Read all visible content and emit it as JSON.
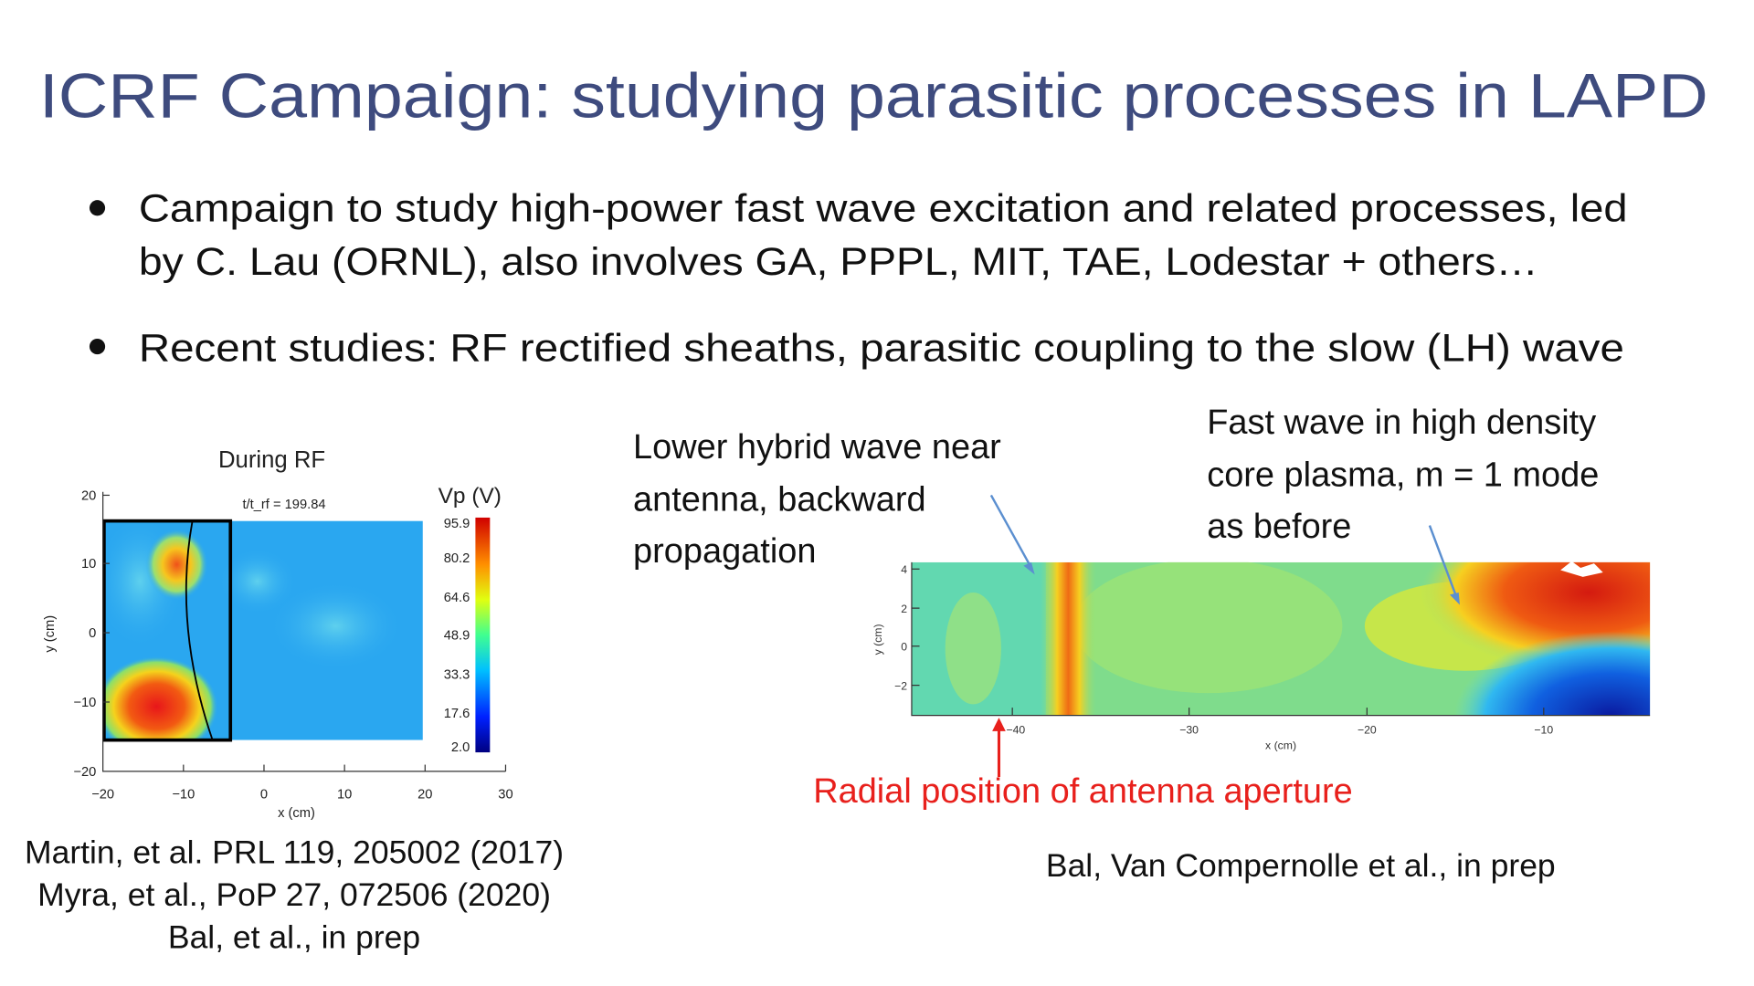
{
  "header": {
    "title": "ICRF Campaign: studying parasitic processes in LAPD"
  },
  "bullets": [
    {
      "lines": [
        "Campaign to study high-power fast wave excitation and related processes, led",
        "by C. Lau (ORNL), also involves GA, PPPL, MIT, TAE, Lodestar + others…"
      ]
    },
    {
      "lines": [
        "Recent studies:  RF rectified sheaths, parasitic coupling to the slow (LH) wave"
      ]
    }
  ],
  "left_figure": {
    "title": "During RF",
    "subtitle": "t/t_rf = 199.84",
    "colorbar_label": "Vp (V)",
    "colorbar_ticks": [
      "95.9",
      "80.2",
      "64.6",
      "48.9",
      "33.3",
      "17.6",
      "2.0"
    ],
    "x_label": "x (cm)",
    "y_label": "y (cm)",
    "xticks": [
      "−20",
      "−10",
      "0",
      "10",
      "20",
      "30"
    ],
    "yticks": [
      "20",
      "10",
      "0",
      "−10",
      "−20"
    ],
    "caption": [
      "Martin, et al. PRL 119, 205002 (2017)",
      "Myra, et al., PoP 27, 072506 (2020)",
      "Bal, et al., in prep"
    ]
  },
  "right_figure": {
    "annotations": [
      {
        "lines": [
          "Lower hybrid wave near",
          "antenna, backward",
          "propagation"
        ]
      },
      {
        "lines": [
          "Fast wave in high density",
          "core plasma, m = 1 mode",
          "as before"
        ]
      },
      {
        "lines": [
          "Radial position of antenna aperture"
        ]
      }
    ],
    "x_label": "x (cm)",
    "y_label": "y (cm)",
    "xticks": [
      "−40",
      "−30",
      "−20",
      "−10"
    ],
    "yticks": [
      "4",
      "2",
      "0",
      "−2"
    ],
    "caption": "Bal, Van Compernolle et al., in prep"
  }
}
